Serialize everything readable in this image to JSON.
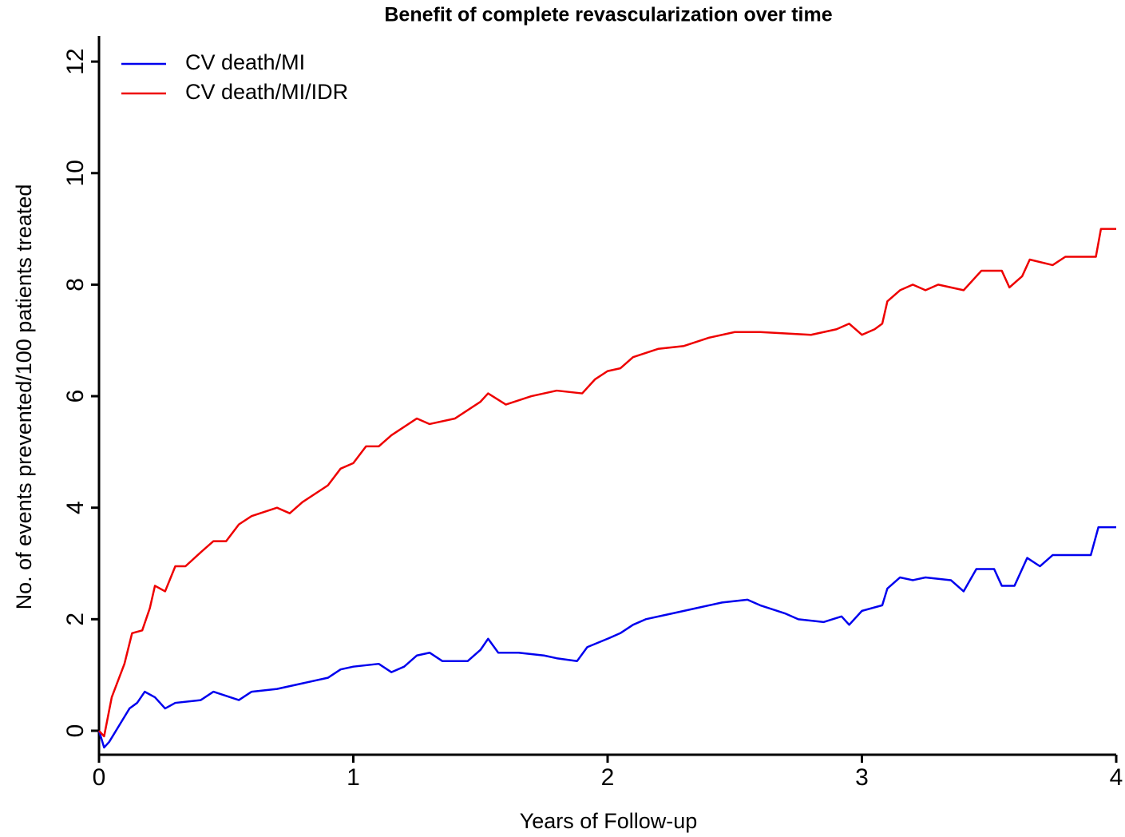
{
  "chart_data": {
    "type": "line",
    "title": "Benefit of complete revascularization over time",
    "x_label": "Years of Follow-up",
    "y_label": "No. of events prevented/100 patients treated",
    "xlim": [
      0,
      4
    ],
    "ylim": [
      -0.43,
      12.46
    ],
    "xticks": [
      0,
      1,
      2,
      3,
      4
    ],
    "yticks": [
      0,
      2,
      4,
      6,
      8,
      10,
      12
    ],
    "legend": "top-left",
    "series": [
      {
        "name": "CV death/MI",
        "color": "#0000ee",
        "x": [
          0,
          0.02,
          0.04,
          0.08,
          0.12,
          0.15,
          0.18,
          0.22,
          0.26,
          0.3,
          0.4,
          0.45,
          0.55,
          0.6,
          0.7,
          0.8,
          0.9,
          0.95,
          1.0,
          1.1,
          1.15,
          1.2,
          1.25,
          1.3,
          1.35,
          1.45,
          1.5,
          1.53,
          1.57,
          1.65,
          1.75,
          1.8,
          1.88,
          1.92,
          2.0,
          2.05,
          2.1,
          2.15,
          2.25,
          2.35,
          2.45,
          2.55,
          2.6,
          2.7,
          2.75,
          2.85,
          2.92,
          2.95,
          3.0,
          3.08,
          3.1,
          3.15,
          3.2,
          3.25,
          3.35,
          3.4,
          3.45,
          3.52,
          3.55,
          3.6,
          3.65,
          3.7,
          3.75,
          3.9,
          3.93,
          4.0
        ],
        "values": [
          0,
          -0.3,
          -0.2,
          0.1,
          0.4,
          0.5,
          0.7,
          0.6,
          0.4,
          0.5,
          0.55,
          0.7,
          0.55,
          0.7,
          0.75,
          0.85,
          0.95,
          1.1,
          1.15,
          1.2,
          1.05,
          1.15,
          1.35,
          1.4,
          1.25,
          1.25,
          1.45,
          1.65,
          1.4,
          1.4,
          1.35,
          1.3,
          1.25,
          1.5,
          1.65,
          1.75,
          1.9,
          2.0,
          2.1,
          2.2,
          2.3,
          2.35,
          2.25,
          2.1,
          2.0,
          1.95,
          2.05,
          1.9,
          2.15,
          2.25,
          2.55,
          2.75,
          2.7,
          2.75,
          2.7,
          2.5,
          2.9,
          2.9,
          2.6,
          2.6,
          3.1,
          2.95,
          3.15,
          3.15,
          3.65,
          3.65
        ]
      },
      {
        "name": "CV death/MI/IDR",
        "color": "#ee0000",
        "x": [
          0,
          0.02,
          0.05,
          0.1,
          0.13,
          0.17,
          0.2,
          0.22,
          0.26,
          0.3,
          0.34,
          0.4,
          0.45,
          0.5,
          0.55,
          0.6,
          0.7,
          0.75,
          0.8,
          0.9,
          0.95,
          1.0,
          1.05,
          1.1,
          1.15,
          1.2,
          1.25,
          1.3,
          1.4,
          1.5,
          1.53,
          1.6,
          1.7,
          1.8,
          1.9,
          1.95,
          2.0,
          2.05,
          2.1,
          2.2,
          2.3,
          2.4,
          2.5,
          2.6,
          2.8,
          2.9,
          2.95,
          3.0,
          3.05,
          3.08,
          3.1,
          3.15,
          3.2,
          3.25,
          3.3,
          3.4,
          3.47,
          3.55,
          3.58,
          3.63,
          3.66,
          3.75,
          3.8,
          3.92,
          3.94,
          4.0
        ],
        "values": [
          0,
          -0.1,
          0.6,
          1.2,
          1.75,
          1.8,
          2.2,
          2.6,
          2.5,
          2.95,
          2.95,
          3.2,
          3.4,
          3.4,
          3.7,
          3.85,
          4.0,
          3.9,
          4.1,
          4.4,
          4.7,
          4.8,
          5.1,
          5.1,
          5.3,
          5.45,
          5.6,
          5.5,
          5.6,
          5.9,
          6.05,
          5.85,
          6.0,
          6.1,
          6.05,
          6.3,
          6.45,
          6.5,
          6.7,
          6.85,
          6.9,
          7.05,
          7.15,
          7.15,
          7.1,
          7.2,
          7.3,
          7.1,
          7.2,
          7.3,
          7.7,
          7.9,
          8.0,
          7.9,
          8.0,
          7.9,
          8.25,
          8.25,
          7.95,
          8.15,
          8.45,
          8.35,
          8.5,
          8.5,
          9.0,
          9.0
        ]
      }
    ]
  }
}
